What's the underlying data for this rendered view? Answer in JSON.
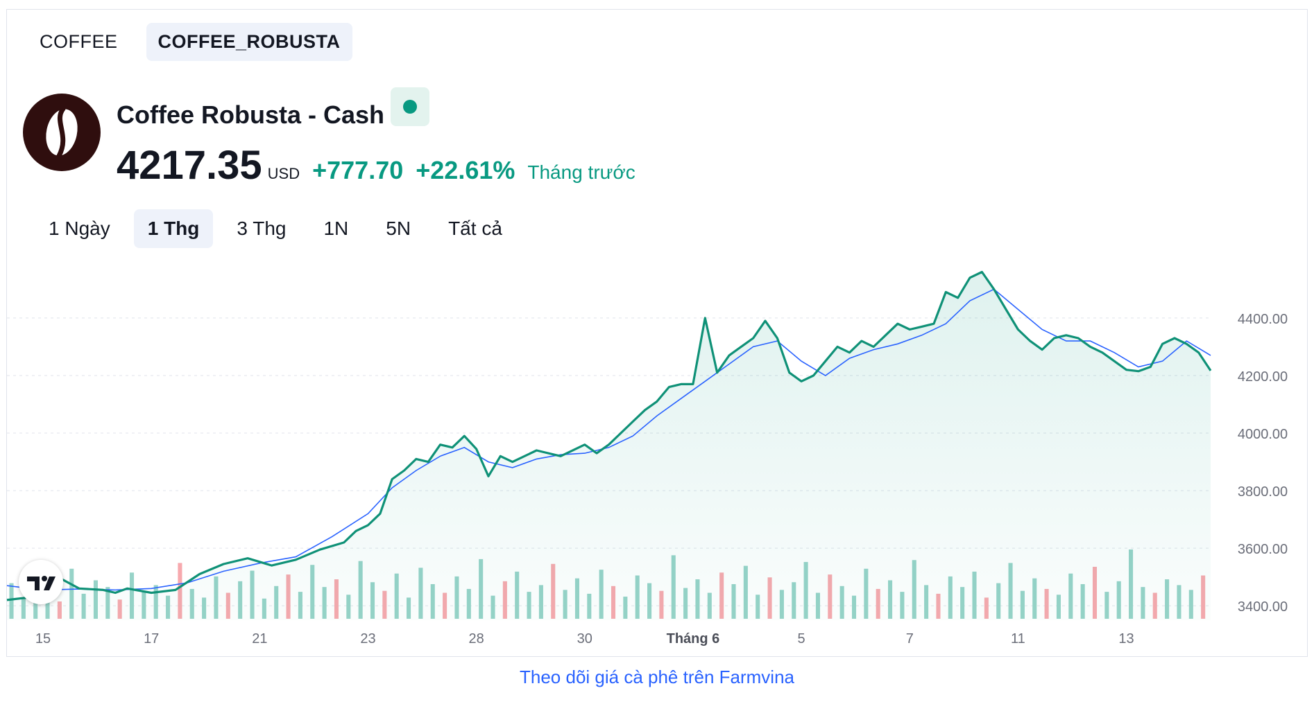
{
  "symbol_tabs": [
    {
      "label": "COFFEE",
      "active": false
    },
    {
      "label": "COFFEE_ROBUSTA",
      "active": true
    }
  ],
  "instrument": {
    "name": "Coffee Robusta - Cash",
    "price": "4217.35",
    "currency": "USD",
    "change": "+777.70",
    "change_pct": "+22.61%",
    "period_label": "Tháng trước"
  },
  "ranges": [
    {
      "label": "1 Ngày",
      "active": false
    },
    {
      "label": "1 Thg",
      "active": true
    },
    {
      "label": "3 Thg",
      "active": false
    },
    {
      "label": "1N",
      "active": false
    },
    {
      "label": "5N",
      "active": false
    },
    {
      "label": "Tất cả",
      "active": false
    }
  ],
  "footer": {
    "link_text": "Theo dõi giá cà phê trên Farmvina"
  },
  "colors": {
    "up": "#089981",
    "down": "#f23645",
    "ma": "#2962ff",
    "line": "#0f9177"
  },
  "chart_data": {
    "type": "line",
    "title": "Coffee Robusta - Cash",
    "ylim": [
      3350,
      4590
    ],
    "yticks": [
      "4400.00",
      "4200.00",
      "4000.00",
      "3800.00",
      "3600.00",
      "3400.00"
    ],
    "ytick_values": [
      4400,
      4200,
      4000,
      3800,
      3600,
      3400
    ],
    "xticks": [
      "15",
      "17",
      "21",
      "23",
      "28",
      "30",
      "Tháng 6",
      "5",
      "7",
      "11",
      "13"
    ],
    "xtick_positions": [
      3,
      12,
      21,
      30,
      39,
      48,
      57,
      66,
      75,
      84,
      93
    ],
    "x_count": 100,
    "legend": "none",
    "grid": true,
    "series": [
      {
        "name": "Price",
        "points": [
          [
            0,
            3420
          ],
          [
            2,
            3430
          ],
          [
            4,
            3505
          ],
          [
            6,
            3460
          ],
          [
            8,
            3455
          ],
          [
            9,
            3445
          ],
          [
            10,
            3460
          ],
          [
            12,
            3445
          ],
          [
            14,
            3455
          ],
          [
            16,
            3510
          ],
          [
            18,
            3545
          ],
          [
            20,
            3565
          ],
          [
            22,
            3540
          ],
          [
            24,
            3560
          ],
          [
            26,
            3595
          ],
          [
            28,
            3620
          ],
          [
            29,
            3660
          ],
          [
            30,
            3680
          ],
          [
            31,
            3720
          ],
          [
            32,
            3840
          ],
          [
            33,
            3870
          ],
          [
            34,
            3910
          ],
          [
            35,
            3900
          ],
          [
            36,
            3960
          ],
          [
            37,
            3950
          ],
          [
            38,
            3990
          ],
          [
            39,
            3945
          ],
          [
            40,
            3850
          ],
          [
            41,
            3920
          ],
          [
            42,
            3900
          ],
          [
            44,
            3940
          ],
          [
            46,
            3920
          ],
          [
            48,
            3960
          ],
          [
            49,
            3930
          ],
          [
            50,
            3960
          ],
          [
            51,
            4000
          ],
          [
            52,
            4040
          ],
          [
            53,
            4080
          ],
          [
            54,
            4110
          ],
          [
            55,
            4160
          ],
          [
            56,
            4170
          ],
          [
            57,
            4170
          ],
          [
            58,
            4400
          ],
          [
            59,
            4210
          ],
          [
            60,
            4270
          ],
          [
            61,
            4300
          ],
          [
            62,
            4330
          ],
          [
            63,
            4390
          ],
          [
            64,
            4330
          ],
          [
            65,
            4210
          ],
          [
            66,
            4180
          ],
          [
            67,
            4200
          ],
          [
            68,
            4250
          ],
          [
            69,
            4300
          ],
          [
            70,
            4280
          ],
          [
            71,
            4320
          ],
          [
            72,
            4300
          ],
          [
            73,
            4340
          ],
          [
            74,
            4380
          ],
          [
            75,
            4360
          ],
          [
            76,
            4370
          ],
          [
            77,
            4380
          ],
          [
            78,
            4490
          ],
          [
            79,
            4470
          ],
          [
            80,
            4540
          ],
          [
            81,
            4560
          ],
          [
            82,
            4500
          ],
          [
            83,
            4430
          ],
          [
            84,
            4360
          ],
          [
            85,
            4320
          ],
          [
            86,
            4290
          ],
          [
            87,
            4330
          ],
          [
            88,
            4340
          ],
          [
            89,
            4330
          ],
          [
            90,
            4300
          ],
          [
            91,
            4280
          ],
          [
            92,
            4250
          ],
          [
            93,
            4220
          ],
          [
            94,
            4215
          ],
          [
            95,
            4230
          ],
          [
            96,
            4310
          ],
          [
            97,
            4330
          ],
          [
            98,
            4310
          ],
          [
            99,
            4280
          ],
          [
            100,
            4217
          ]
        ]
      },
      {
        "name": "Moving Average",
        "points": [
          [
            0,
            3470
          ],
          [
            3,
            3455
          ],
          [
            6,
            3458
          ],
          [
            9,
            3455
          ],
          [
            12,
            3460
          ],
          [
            15,
            3480
          ],
          [
            18,
            3520
          ],
          [
            21,
            3548
          ],
          [
            24,
            3570
          ],
          [
            27,
            3640
          ],
          [
            30,
            3720
          ],
          [
            32,
            3810
          ],
          [
            34,
            3870
          ],
          [
            36,
            3920
          ],
          [
            38,
            3950
          ],
          [
            40,
            3900
          ],
          [
            42,
            3880
          ],
          [
            44,
            3910
          ],
          [
            46,
            3925
          ],
          [
            48,
            3930
          ],
          [
            50,
            3950
          ],
          [
            52,
            3990
          ],
          [
            54,
            4060
          ],
          [
            56,
            4120
          ],
          [
            58,
            4180
          ],
          [
            60,
            4240
          ],
          [
            62,
            4300
          ],
          [
            64,
            4320
          ],
          [
            66,
            4250
          ],
          [
            68,
            4200
          ],
          [
            70,
            4260
          ],
          [
            72,
            4290
          ],
          [
            74,
            4310
          ],
          [
            76,
            4340
          ],
          [
            78,
            4380
          ],
          [
            80,
            4460
          ],
          [
            82,
            4500
          ],
          [
            84,
            4430
          ],
          [
            86,
            4360
          ],
          [
            88,
            4320
          ],
          [
            90,
            4320
          ],
          [
            92,
            4280
          ],
          [
            94,
            4230
          ],
          [
            96,
            4250
          ],
          [
            98,
            4320
          ],
          [
            100,
            4270
          ]
        ]
      }
    ],
    "volume": [
      37,
      22,
      45,
      30,
      18,
      52,
      26,
      40,
      33,
      20,
      48,
      29,
      35,
      24,
      58,
      31,
      22,
      44,
      27,
      39,
      50,
      21,
      34,
      46,
      28,
      56,
      33,
      41,
      25,
      60,
      38,
      29,
      47,
      22,
      53,
      36,
      27,
      44,
      31,
      62,
      24,
      39,
      49,
      28,
      35,
      57,
      30,
      42,
      26,
      51,
      34,
      23,
      45,
      37,
      29,
      66,
      32,
      41,
      27,
      48,
      36,
      55,
      25,
      43,
      30,
      38,
      59,
      27,
      46,
      34,
      24,
      52,
      31,
      40,
      28,
      61,
      35,
      26,
      44,
      33,
      49,
      22,
      37,
      58,
      29,
      42,
      31,
      25,
      47,
      36,
      54,
      28,
      39,
      72,
      33,
      27,
      41,
      35,
      30,
      45
    ],
    "volume_down_idx": [
      4,
      9,
      14,
      18,
      23,
      27,
      31,
      36,
      41,
      45,
      50,
      54,
      59,
      63,
      68,
      72,
      77,
      81,
      86,
      90,
      95,
      99
    ]
  }
}
